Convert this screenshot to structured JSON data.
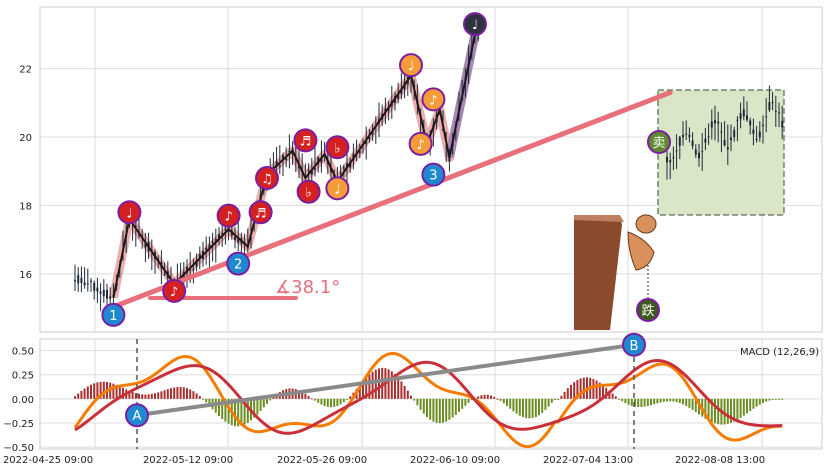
{
  "chart_data": [
    {
      "type": "candlestick",
      "panel": "price",
      "ylim": [
        14.3,
        23.8
      ],
      "y_ticks": [
        "16",
        "18",
        "20",
        "22"
      ],
      "y_tick_values": [
        16,
        18,
        20,
        22
      ],
      "grid": true,
      "candle_color": "#1e2a3a",
      "zigzag_color": "#1a1a1a",
      "zigzag_band_color": "#e89a9a",
      "zigzag_points": [
        {
          "i": 12,
          "y": 15.3
        },
        {
          "i": 17,
          "y": 17.6
        },
        {
          "i": 31,
          "y": 15.7
        },
        {
          "i": 48,
          "y": 17.3
        },
        {
          "i": 54,
          "y": 16.8
        },
        {
          "i": 60,
          "y": 18.9
        },
        {
          "i": 68,
          "y": 19.6
        },
        {
          "i": 72,
          "y": 18.8
        },
        {
          "i": 78,
          "y": 19.5
        },
        {
          "i": 82,
          "y": 18.7
        },
        {
          "i": 105,
          "y": 21.8
        },
        {
          "i": 110,
          "y": 19.8
        },
        {
          "i": 114,
          "y": 20.8
        },
        {
          "i": 117,
          "y": 19.4
        },
        {
          "i": 125,
          "y": 23.0
        }
      ],
      "trendline": {
        "from": {
          "i": 11,
          "y": 15.0
        },
        "to": {
          "i": 186,
          "y": 21.3
        },
        "color": "#e8707d"
      },
      "angle_label": "∡38.1°",
      "angle_color": "#e8707d",
      "markers": [
        {
          "label": "1",
          "i": 12,
          "y": 14.8,
          "color": "#1e88d0"
        },
        {
          "label": "♩",
          "i": 17,
          "y": 17.8,
          "color": "#d42020"
        },
        {
          "label": "♪",
          "i": 31,
          "y": 15.5,
          "color": "#d42020"
        },
        {
          "label": "2",
          "i": 51,
          "y": 16.3,
          "color": "#1e88d0"
        },
        {
          "label": "♪",
          "i": 48,
          "y": 17.7,
          "color": "#d42020"
        },
        {
          "label": "♬",
          "i": 58,
          "y": 17.8,
          "color": "#d42020"
        },
        {
          "label": "♫",
          "i": 60,
          "y": 18.8,
          "color": "#d42020"
        },
        {
          "label": "♬",
          "i": 72,
          "y": 19.9,
          "color": "#d42020"
        },
        {
          "label": "♭",
          "i": 73,
          "y": 18.4,
          "color": "#d42020"
        },
        {
          "label": "♭",
          "i": 82,
          "y": 19.7,
          "color": "#d42020"
        },
        {
          "label": "♩",
          "i": 82,
          "y": 18.5,
          "color": "#f39c38"
        },
        {
          "label": "♩",
          "i": 105,
          "y": 22.1,
          "color": "#f39c38"
        },
        {
          "label": "♪",
          "i": 108,
          "y": 19.8,
          "color": "#f39c38"
        },
        {
          "label": "♪",
          "i": 112,
          "y": 21.1,
          "color": "#f39c38"
        },
        {
          "label": "3",
          "i": 112,
          "y": 18.9,
          "color": "#1e88d0"
        },
        {
          "label": "♩",
          "i": 125,
          "y": 23.3,
          "color": "#2d3440"
        }
      ],
      "forecast_box": {
        "color": "#d9e6c8",
        "border": "#3c4a2e"
      },
      "sell_marker": {
        "label": "卖",
        "color": "#5f8a2e"
      },
      "fall_marker": {
        "label": "跌",
        "color": "#3a5a1e"
      },
      "cliff_color": "#8b4a2b"
    },
    {
      "type": "bar+line",
      "panel": "macd",
      "title": "MACD (12,26,9)",
      "ylim": [
        -0.52,
        0.62
      ],
      "y_ticks": [
        "0.50",
        "0.25",
        "0.00",
        "−0.25",
        "−0.50"
      ],
      "y_tick_values": [
        0.5,
        0.25,
        0,
        -0.25,
        -0.5
      ],
      "x_ticks": [
        "2022-04-25 09:00",
        "2022-05-12 09:00",
        "2022-05-26 09:00",
        "2022-06-10 09:00",
        "2022-07-04 13:00",
        "2022-08-08 13:00"
      ],
      "series": [
        {
          "line": "dif",
          "color": "#f57c00"
        },
        {
          "line": "dea",
          "color": "#c8303a"
        }
      ],
      "hist_pos_color": "#a8302e",
      "hist_neg_color": "#6b8e23",
      "divergence_line": {
        "from": {
          "i": 9,
          "y": -0.17
        },
        "to": {
          "i": 104,
          "y": 0.56
        },
        "color": "#8a8a8a"
      },
      "markers": [
        {
          "label": "A",
          "i": 9,
          "y": -0.17,
          "color": "#1e88d0"
        },
        {
          "label": "B",
          "i": 104,
          "y": 0.56,
          "color": "#1e88d0"
        }
      ],
      "vlines_at": [
        9,
        104
      ]
    }
  ]
}
